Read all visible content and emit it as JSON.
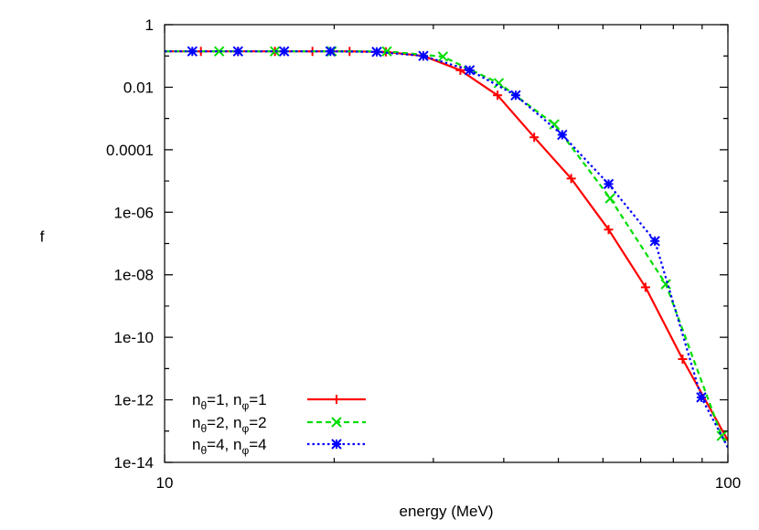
{
  "chart_data": {
    "type": "line",
    "title": "",
    "xlabel": "energy (MeV)",
    "ylabel": "f",
    "xscale": "log",
    "yscale": "log",
    "xlim": [
      10,
      100
    ],
    "ylim": [
      1e-14,
      1
    ],
    "x_ticks": [
      {
        "value": 10,
        "label": "10"
      },
      {
        "value": 100,
        "label": "100"
      }
    ],
    "y_ticks": [
      {
        "value": 1,
        "label": "1"
      },
      {
        "value": 0.01,
        "label": "0.01"
      },
      {
        "value": 0.0001,
        "label": "0.0001"
      },
      {
        "value": 1e-06,
        "label": "1e-06"
      },
      {
        "value": 1e-08,
        "label": "1e-08"
      },
      {
        "value": 1e-10,
        "label": "1e-10"
      },
      {
        "value": 1e-12,
        "label": "1e-12"
      },
      {
        "value": 1e-14,
        "label": "1e-14"
      }
    ],
    "grid": false,
    "legend_position": "bottom-left",
    "series": [
      {
        "name": "n_θ=1, n_φ=1",
        "legend_main": [
          "n",
          "=1, n",
          "=1"
        ],
        "legend_subs": [
          "θ",
          "φ"
        ],
        "color": "#ff0000",
        "dash": "solid",
        "marker": "plus",
        "x": [
          10,
          11.6,
          13.5,
          15.7,
          18.3,
          21.3,
          24.7,
          28.8,
          33.5,
          39.0,
          45.3,
          52.7,
          61.4,
          71.4,
          83.1,
          100
        ],
        "y": [
          0.14,
          0.14,
          0.14,
          0.14,
          0.14,
          0.14,
          0.135,
          0.1,
          0.035,
          0.0055,
          0.00025,
          1.2e-05,
          2.8e-07,
          4e-09,
          2e-11,
          5e-14
        ]
      },
      {
        "name": "n_θ=2, n_φ=2",
        "legend_main": [
          "n",
          "=2, n",
          "=2"
        ],
        "legend_subs": [
          "θ",
          "φ"
        ],
        "color": "#00dd00",
        "dash": "dashed",
        "marker": "cross",
        "x": [
          10,
          12.5,
          15.7,
          19.8,
          24.8,
          31.2,
          39.2,
          49.2,
          61.8,
          77.6,
          97.5,
          100
        ],
        "y": [
          0.14,
          0.14,
          0.14,
          0.14,
          0.14,
          0.095,
          0.0135,
          0.00065,
          2.8e-06,
          5e-09,
          7e-14,
          3e-14
        ]
      },
      {
        "name": "n_θ=4, n_φ=4",
        "legend_main": [
          "n",
          "=4, n",
          "=4"
        ],
        "legend_subs": [
          "θ",
          "φ"
        ],
        "color": "#0000ff",
        "dash": "dotted",
        "marker": "star",
        "x": [
          10,
          11.2,
          13.5,
          16.3,
          19.7,
          23.8,
          28.8,
          34.8,
          42.0,
          50.8,
          61.4,
          74.2,
          89.7,
          100
        ],
        "y": [
          0.14,
          0.14,
          0.14,
          0.14,
          0.14,
          0.135,
          0.1,
          0.035,
          0.0055,
          0.0003,
          8e-06,
          1.2e-07,
          1.2e-12,
          3e-14
        ]
      }
    ]
  }
}
